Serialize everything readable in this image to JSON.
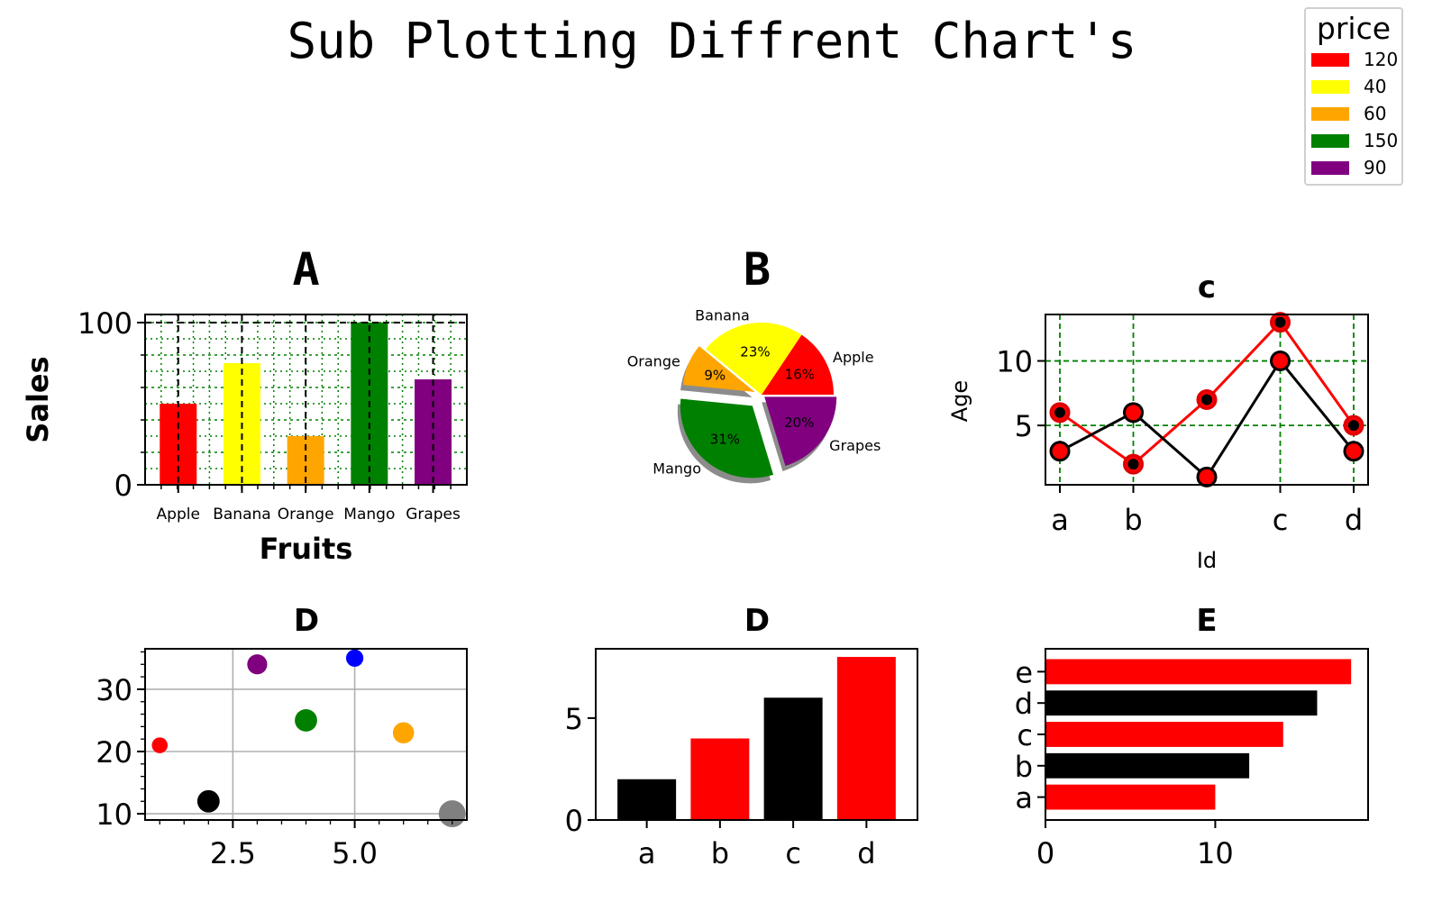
{
  "suptitle": "Sub Plotting Diffrent Chart's",
  "legend": {
    "title": "price",
    "entries": [
      {
        "label": "120",
        "color": "#ff0000"
      },
      {
        "label": "40",
        "color": "#ffff00"
      },
      {
        "label": "60",
        "color": "#ffa500"
      },
      {
        "label": "150",
        "color": "#008000"
      },
      {
        "label": "90",
        "color": "#800080"
      }
    ]
  },
  "chart_data": [
    {
      "id": "A",
      "type": "bar",
      "title": "A",
      "categories": [
        "Apple",
        "Banana",
        "Orange",
        "Mango",
        "Grapes"
      ],
      "values": [
        50,
        75,
        30,
        100,
        65
      ],
      "colors": [
        "#ff0000",
        "#ffff00",
        "#ffa500",
        "#008000",
        "#800080"
      ],
      "xlabel": "Fruits",
      "ylabel": "Sales",
      "ylim": [
        0,
        105
      ],
      "yticks": [
        0,
        100
      ],
      "grid": true
    },
    {
      "id": "B",
      "type": "pie",
      "title": "B",
      "labels": [
        "Apple",
        "Banana",
        "Orange",
        "Mango",
        "Grapes"
      ],
      "values": [
        50,
        75,
        30,
        100,
        65
      ],
      "pct_labels": [
        "16%",
        "23%",
        "9%",
        "31%",
        "20%"
      ],
      "colors": [
        "#ff0000",
        "#ffff00",
        "#ffa500",
        "#008000",
        "#800080"
      ],
      "explode": [
        0,
        0,
        0.1,
        0.2,
        0.05
      ],
      "shadow": true
    },
    {
      "id": "C",
      "type": "line",
      "title": "c",
      "x": [
        0,
        1,
        2,
        3,
        4
      ],
      "xtick_labels": [
        "a",
        "b",
        "c",
        "d"
      ],
      "xtick_positions": [
        0,
        1,
        3,
        4
      ],
      "series": [
        {
          "values": [
            6,
            2,
            7,
            13,
            5
          ],
          "color": "#ff0000",
          "marker_face": "#ff0000",
          "marker_edge": "#cc0000"
        },
        {
          "values": [
            3,
            6,
            1,
            10,
            3
          ],
          "color": "#000000",
          "marker_face": "#ff0000",
          "marker_edge": "#000000"
        }
      ],
      "xlabel": "Id",
      "ylabel": "Age",
      "ylim": [
        0.4,
        13.6
      ],
      "yticks": [
        5,
        10
      ],
      "grid": true
    },
    {
      "id": "D1",
      "type": "scatter",
      "title": "D",
      "points": [
        {
          "x": 1,
          "y": 21,
          "color": "#ff0000",
          "size": 1
        },
        {
          "x": 2,
          "y": 12,
          "color": "#000000",
          "size": 2
        },
        {
          "x": 3,
          "y": 34,
          "color": "#800080",
          "size": 1.6
        },
        {
          "x": 4,
          "y": 25,
          "color": "#008000",
          "size": 2
        },
        {
          "x": 5,
          "y": 35,
          "color": "#0000ff",
          "size": 1.2
        },
        {
          "x": 6,
          "y": 23,
          "color": "#ffa500",
          "size": 1.8
        },
        {
          "x": 7,
          "y": 10,
          "color": "#808080",
          "size": 2.9
        }
      ],
      "xlim": [
        0.7,
        7.3
      ],
      "ylim": [
        9,
        36.5
      ],
      "xticks": [
        2.5,
        5.0
      ],
      "yticks": [
        10,
        20,
        30
      ],
      "grid": true
    },
    {
      "id": "D2",
      "type": "bar",
      "title": "D",
      "categories": [
        "a",
        "b",
        "c",
        "d"
      ],
      "values": [
        2,
        4,
        6,
        8
      ],
      "colors": [
        "#000000",
        "#ff0000",
        "#000000",
        "#ff0000"
      ],
      "ylim": [
        0,
        8.4
      ],
      "yticks": [
        0,
        5
      ]
    },
    {
      "id": "E",
      "type": "barh",
      "title": "E",
      "categories": [
        "a",
        "b",
        "c",
        "d",
        "e"
      ],
      "values": [
        10,
        12,
        14,
        16,
        18
      ],
      "colors": [
        "#ff0000",
        "#000000",
        "#ff0000",
        "#000000",
        "#ff0000"
      ],
      "xlim": [
        0,
        19
      ],
      "xticks": [
        0,
        10
      ]
    }
  ]
}
